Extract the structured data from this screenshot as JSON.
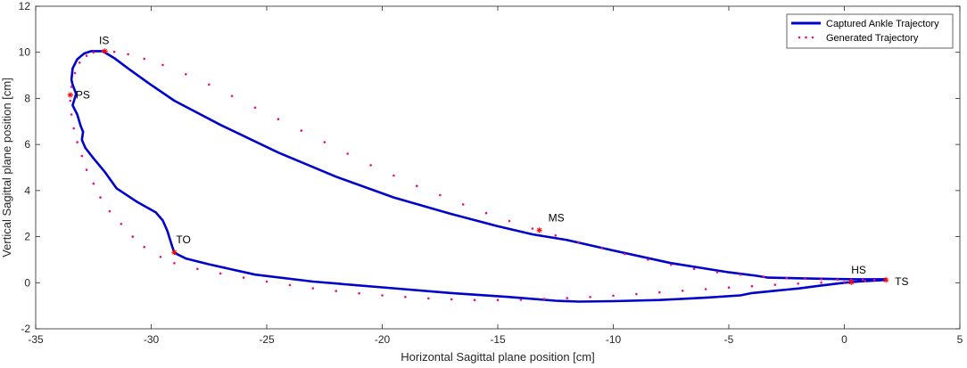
{
  "chart_data": {
    "type": "line",
    "xlabel": "Horizontal Sagittal plane position [cm]",
    "ylabel": "Vertical Sagittal plane position [cm]",
    "xlim": [
      -35,
      5
    ],
    "ylim": [
      -2,
      12
    ],
    "xticks": [
      -35,
      -30,
      -25,
      -20,
      -15,
      -10,
      -5,
      0,
      5
    ],
    "yticks": [
      -2,
      0,
      2,
      4,
      6,
      8,
      10,
      12
    ],
    "grid": false,
    "legend_position": "top-right",
    "colors": {
      "captured": "#0000cc",
      "generated": "#e0137f",
      "event": "#ff0000",
      "axis": "#262626"
    },
    "series": [
      {
        "name": "Captured Ankle Trajectory",
        "style": "solid-line",
        "x": [
          1.8,
          0.5,
          -0.5,
          -1.5,
          -3.3,
          -3.8,
          -5,
          -7.5,
          -10,
          -12,
          -13.5,
          -15,
          -17,
          -19.5,
          -22,
          -24.5,
          -27,
          -29,
          -30.1,
          -31,
          -31.6,
          -32.1,
          -32.6,
          -32.9,
          -33.2,
          -33.4,
          -33.45,
          -33.4,
          -33.25,
          -33.4,
          -33.2,
          -33.05,
          -32.95,
          -33.0,
          -32.85,
          -32.5,
          -32.0,
          -31.5,
          -30.6,
          -29.8,
          -29.5,
          -29.3,
          -29.1,
          -29.0,
          -28.5,
          -27.5,
          -25.5,
          -23,
          -20,
          -17,
          -14.5,
          -12.5,
          -11.5,
          -10,
          -8,
          -6,
          -4.5,
          -4,
          -3,
          -2,
          -1,
          0,
          0.6,
          1.8
        ],
        "y": [
          0.15,
          0.15,
          0.16,
          0.18,
          0.22,
          0.3,
          0.45,
          0.85,
          1.4,
          1.85,
          2.1,
          2.45,
          2.98,
          3.7,
          4.6,
          5.65,
          6.85,
          7.9,
          8.65,
          9.3,
          9.75,
          10.05,
          10.05,
          9.95,
          9.7,
          9.3,
          8.8,
          8.6,
          8.2,
          7.7,
          7.3,
          6.8,
          6.55,
          6.2,
          5.85,
          5.4,
          4.8,
          4.1,
          3.5,
          3.05,
          2.7,
          2.25,
          1.6,
          1.3,
          1.05,
          0.8,
          0.35,
          0.05,
          -0.2,
          -0.45,
          -0.62,
          -0.78,
          -0.82,
          -0.8,
          -0.75,
          -0.65,
          -0.55,
          -0.45,
          -0.35,
          -0.25,
          -0.12,
          0.0,
          0.05,
          0.12
        ]
      },
      {
        "name": "Generated Trajectory",
        "style": "dotted-markers",
        "x": [
          1.8,
          1.3,
          0.8,
          0.3,
          -0.3,
          -1.0,
          -1.7,
          -2.5,
          -3.5,
          -4.5,
          -5.5,
          -6.5,
          -7.5,
          -8.5,
          -9.5,
          -10.5,
          -11.5,
          -12.5,
          -13.5,
          -14.5,
          -15.5,
          -16.5,
          -17.5,
          -18.5,
          -19.5,
          -20.5,
          -21.5,
          -22.5,
          -23.5,
          -24.5,
          -25.5,
          -26.5,
          -27.5,
          -28.5,
          -29.5,
          -30.3,
          -31.0,
          -31.6,
          -32.1,
          -32.5,
          -32.8,
          -33.1,
          -33.3,
          -33.45,
          -33.5,
          -33.45,
          -33.35,
          -33.2,
          -33.0,
          -32.8,
          -32.5,
          -32.2,
          -31.8,
          -31.3,
          -30.8,
          -30.3,
          -29.6,
          -29.0,
          -28.0,
          -27.0,
          -26.0,
          -25.0,
          -24.0,
          -23.0,
          -22.0,
          -21.0,
          -20.0,
          -19.0,
          -18.0,
          -17.0,
          -16.0,
          -15.0,
          -14.0,
          -13.0,
          -12.0,
          -11.0,
          -10.0,
          -9.0,
          -8.0,
          -7.0,
          -6.0,
          -5.0,
          -4.0,
          -3.0,
          -2.0,
          -1.0,
          0.0,
          0.9
        ],
        "y": [
          0.12,
          0.12,
          0.13,
          0.13,
          0.14,
          0.15,
          0.17,
          0.2,
          0.26,
          0.35,
          0.46,
          0.6,
          0.78,
          1.0,
          1.25,
          1.5,
          1.76,
          2.05,
          2.35,
          2.68,
          3.02,
          3.4,
          3.8,
          4.2,
          4.65,
          5.1,
          5.6,
          6.1,
          6.6,
          7.1,
          7.6,
          8.1,
          8.6,
          9.05,
          9.45,
          9.72,
          9.92,
          10.02,
          10.05,
          10.0,
          9.85,
          9.55,
          9.1,
          8.5,
          7.9,
          7.3,
          6.7,
          6.1,
          5.5,
          4.9,
          4.3,
          3.7,
          3.1,
          2.55,
          2.0,
          1.55,
          1.12,
          0.85,
          0.6,
          0.4,
          0.22,
          0.05,
          -0.1,
          -0.24,
          -0.36,
          -0.46,
          -0.55,
          -0.62,
          -0.68,
          -0.72,
          -0.75,
          -0.75,
          -0.74,
          -0.71,
          -0.67,
          -0.62,
          -0.56,
          -0.49,
          -0.42,
          -0.35,
          -0.28,
          -0.21,
          -0.15,
          -0.09,
          -0.04,
          0.0,
          0.03,
          0.07
        ]
      }
    ],
    "events": [
      {
        "label": "IS",
        "x": -32.0,
        "y": 10.05
      },
      {
        "label": "PS",
        "x": -33.5,
        "y": 8.15
      },
      {
        "label": "MS",
        "x": -13.2,
        "y": 2.28
      },
      {
        "label": "TO",
        "x": -29.0,
        "y": 1.32
      },
      {
        "label": "HS",
        "x": 0.3,
        "y": 0.02
      },
      {
        "label": "TS",
        "x": 1.8,
        "y": 0.12
      }
    ]
  }
}
